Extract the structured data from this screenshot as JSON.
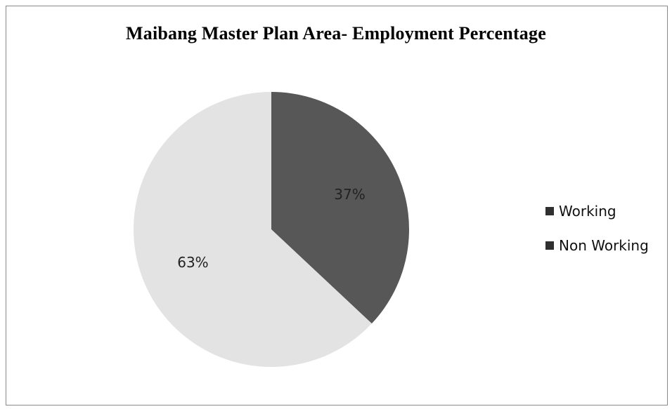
{
  "chart_data": {
    "type": "pie",
    "title": "Maibang Master Plan Area- Employment Percentage",
    "categories": [
      "Working",
      "Non Working"
    ],
    "values": [
      37,
      63
    ],
    "data_labels": [
      "37%",
      "63%"
    ],
    "colors": [
      "#575757",
      "#e3e3e3"
    ],
    "legend": {
      "position": "right",
      "entries": [
        {
          "label": "Working",
          "legend_color": "#303030"
        },
        {
          "label": "Non Working",
          "legend_color": "#303030"
        }
      ]
    }
  }
}
